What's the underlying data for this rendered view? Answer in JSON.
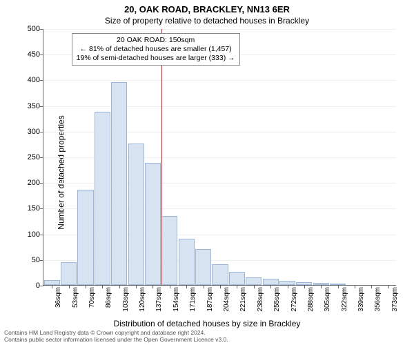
{
  "title": "20, OAK ROAD, BRACKLEY, NN13 6ER",
  "subtitle": "Size of property relative to detached houses in Brackley",
  "ylabel": "Number of detached properties",
  "xlabel": "Distribution of detached houses by size in Brackley",
  "footer_line1": "Contains HM Land Registry data © Crown copyright and database right 2024.",
  "footer_line2": "Contains public sector information licensed under the Open Government Licence v3.0.",
  "chart": {
    "type": "bar",
    "ylim": [
      0,
      500
    ],
    "ytick_step": 50,
    "bar_fill": "#d8e3f1",
    "bar_border": "#9db5d6",
    "background": "#ffffff",
    "grid_color": "#eeeeee",
    "axis_color": "#666666",
    "ref_color": "#dd2222",
    "ref_x_index": 7,
    "categories": [
      "36sqm",
      "53sqm",
      "70sqm",
      "86sqm",
      "103sqm",
      "120sqm",
      "137sqm",
      "154sqm",
      "171sqm",
      "187sqm",
      "204sqm",
      "221sqm",
      "238sqm",
      "255sqm",
      "272sqm",
      "288sqm",
      "305sqm",
      "322sqm",
      "339sqm",
      "356sqm",
      "373sqm"
    ],
    "values": [
      10,
      45,
      185,
      338,
      395,
      275,
      238,
      135,
      90,
      70,
      40,
      25,
      15,
      12,
      8,
      6,
      4,
      2,
      0,
      0,
      0
    ],
    "annotation": {
      "line1": "20 OAK ROAD: 150sqm",
      "line2": "← 81% of detached houses are smaller (1,457)",
      "line3": "19% of semi-detached houses are larger (333) →"
    },
    "title_fontsize": 13,
    "subtitle_fontsize": 12,
    "label_fontsize": 12,
    "tick_fontsize": 11
  }
}
